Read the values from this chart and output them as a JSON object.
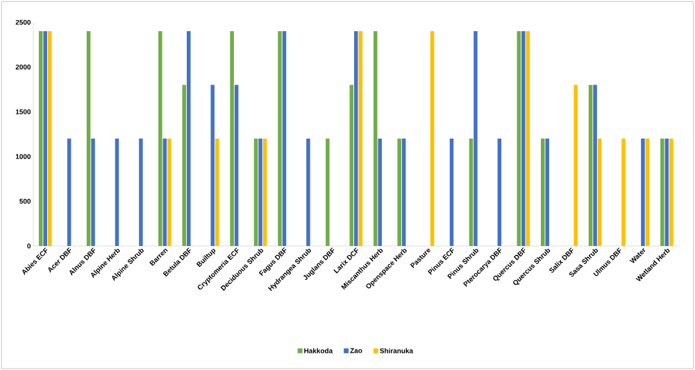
{
  "chart_data": {
    "type": "bar",
    "categories": [
      "Abies ECF",
      "Acer DBF",
      "Alnus DBF",
      "Alpine Herb",
      "Alpine Shrub",
      "Barren",
      "Betula DBF",
      "Builtup",
      "Cryptomeria ECF",
      "Deciduous Shrub",
      "Fagus DBF",
      "Hydrangea Shrub",
      "Juglans DBF",
      "Larix DCF",
      "Miscanthus Herb",
      "Openspace Herb",
      "Pasture",
      "Pinus ECF",
      "Pinus Shrub",
      "Pterocarya DBF",
      "Quercus DBF",
      "Quercus Shrub",
      "Salix DBF",
      "Sasa Shrub",
      "Ulmus DBF",
      "Water",
      "Wetland Herb"
    ],
    "series": [
      {
        "name": "Hakkoda",
        "color": "#70ad47",
        "values": [
          2400,
          null,
          2400,
          null,
          null,
          2400,
          1800,
          null,
          2400,
          1200,
          2400,
          null,
          1200,
          1800,
          2400,
          1200,
          null,
          null,
          1200,
          null,
          2400,
          1200,
          null,
          1800,
          null,
          null,
          1200
        ]
      },
      {
        "name": "Zao",
        "color": "#4472c4",
        "values": [
          2400,
          1200,
          1200,
          1200,
          1200,
          1200,
          2400,
          1800,
          1800,
          1200,
          2400,
          1200,
          null,
          2400,
          1200,
          1200,
          null,
          1200,
          2400,
          1200,
          2400,
          1200,
          null,
          1800,
          null,
          1200,
          1200
        ]
      },
      {
        "name": "Shiranuka",
        "color": "#ffc000",
        "values": [
          2400,
          null,
          null,
          null,
          null,
          1200,
          null,
          1200,
          null,
          1200,
          null,
          null,
          null,
          2400,
          null,
          null,
          2400,
          null,
          null,
          null,
          2400,
          null,
          1800,
          1200,
          1200,
          1200,
          1200
        ]
      }
    ],
    "ylim": [
      0,
      2500
    ],
    "yticks": [
      0,
      500,
      1000,
      1500,
      2000,
      2500
    ],
    "legend": "bottom"
  }
}
